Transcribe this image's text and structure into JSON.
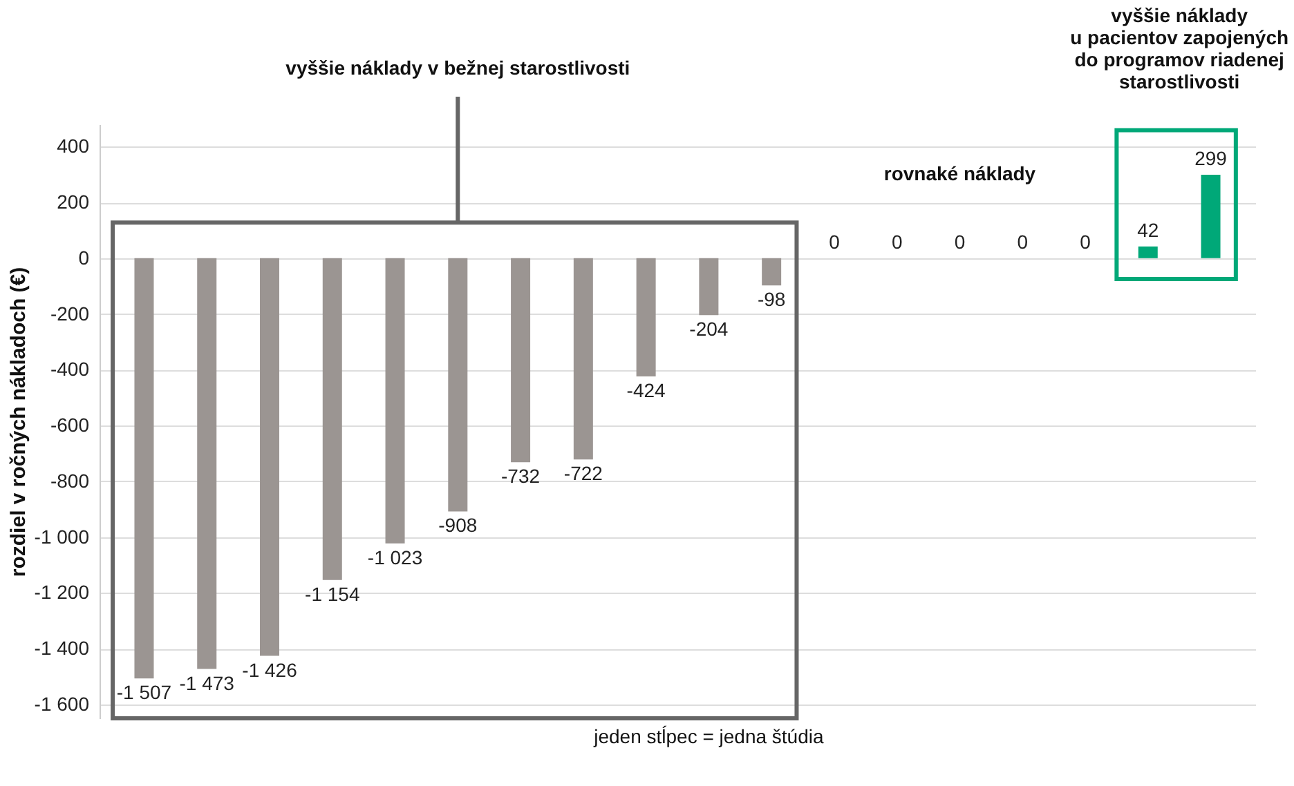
{
  "chart_data": {
    "type": "bar",
    "ylabel": "rozdiel v ročných nákladoch (€)",
    "categories": [
      null,
      null,
      null,
      null,
      null,
      null,
      null,
      null,
      null,
      null,
      null,
      null,
      null,
      null,
      null,
      null,
      null,
      null
    ],
    "values": [
      -1507,
      -1473,
      -1426,
      -1154,
      -1023,
      -908,
      -732,
      -722,
      -424,
      -204,
      -98,
      0,
      0,
      0,
      0,
      0,
      42,
      299
    ],
    "colors": [
      "#9b9592",
      "#9b9592",
      "#9b9592",
      "#9b9592",
      "#9b9592",
      "#9b9592",
      "#9b9592",
      "#9b9592",
      "#9b9592",
      "#9b9592",
      "#9b9592",
      "#9b9592",
      "#9b9592",
      "#9b9592",
      "#9b9592",
      "#9b9592",
      "#00a878",
      "#00a878"
    ],
    "ylim": [
      -1650,
      480
    ],
    "yticks": [
      {
        "value": -1600,
        "label": "-1 600"
      },
      {
        "value": -1400,
        "label": "-1 400"
      },
      {
        "value": -1200,
        "label": "-1 200"
      },
      {
        "value": -1000,
        "label": "-1 000"
      },
      -800,
      -600,
      -400,
      -200,
      0,
      200,
      400
    ],
    "grid": "y",
    "data_labels": true,
    "annotations": [
      "vyššie náklady v bežnej starostlivosti",
      "rovnaké náklady",
      "vyššie náklady\nu pacientov zapojených\ndo programov riadenej\nstarostlivosti",
      "jeden stĺpec = jedna štúdia"
    ]
  }
}
